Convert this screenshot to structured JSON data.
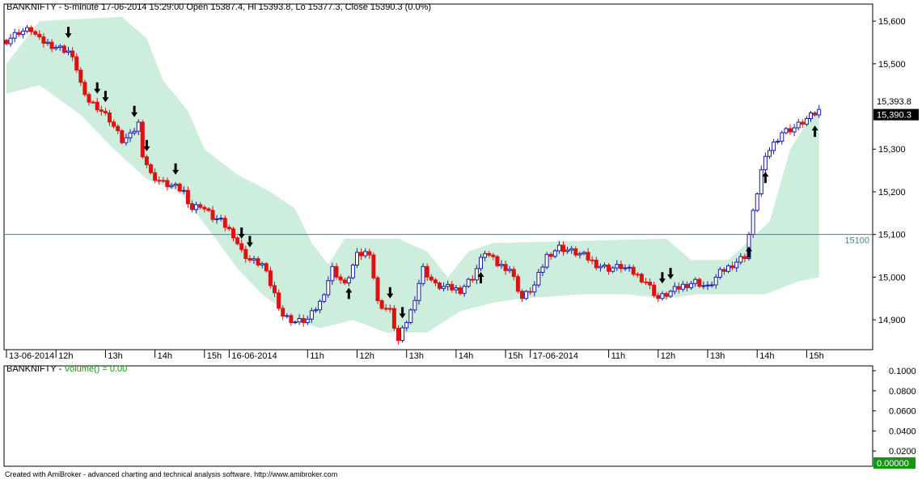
{
  "header": {
    "main_title": "BANKNIFTY - 5-minute 17-06-2014 15:29:00 Open 15387.4, Hi 15393.8, Lo 15377.3, Close 15390.3 (0.0%)",
    "volume_symbol": "BANKNIFTY - ",
    "volume_title": "Volume() = 0.00"
  },
  "footer": {
    "credit": "Created with AmiBroker - advanced charting and technical analysis software. http://www.amibroker.com"
  },
  "colors": {
    "up_candle": "#1a1aa8",
    "down_candle": "#e01010",
    "cloud": "#cdeedd",
    "hline": "#3a8a8a",
    "volume_title": "#1a9a1a"
  },
  "chart_data": {
    "type": "candlestick",
    "ylim": [
      14830,
      15640
    ],
    "price_ticks": [
      "15,600",
      "15,500",
      "15,300",
      "15,200",
      "15,100",
      "15,000",
      "14,900"
    ],
    "price_tick_values": [
      15600,
      15500,
      15300,
      15200,
      15100,
      15000,
      14900
    ],
    "hi_label": "15,393.8",
    "hi_value": 15393.8,
    "close_label": "15,390.3",
    "close_value": 15390.3,
    "horizontal_line": {
      "label": "15100",
      "value": 15100
    },
    "x_labels": [
      {
        "text": "13-06-2014",
        "bar": 0
      },
      {
        "text": "12h",
        "bar": 12
      },
      {
        "text": "13h",
        "bar": 24
      },
      {
        "text": "14h",
        "bar": 36
      },
      {
        "text": "15h",
        "bar": 48
      },
      {
        "text": "16-06-2014",
        "bar": 54
      },
      {
        "text": "11h",
        "bar": 73
      },
      {
        "text": "12h",
        "bar": 85
      },
      {
        "text": "13h",
        "bar": 97
      },
      {
        "text": "14h",
        "bar": 109
      },
      {
        "text": "15h",
        "bar": 121
      },
      {
        "text": "17-06-2014",
        "bar": 127
      },
      {
        "text": "11h",
        "bar": 146
      },
      {
        "text": "12h",
        "bar": 158
      },
      {
        "text": "13h",
        "bar": 170
      },
      {
        "text": "14h",
        "bar": 182
      },
      {
        "text": "15h",
        "bar": 194
      }
    ],
    "close_path": [
      [
        0,
        15555
      ],
      [
        3,
        15575
      ],
      [
        6,
        15580
      ],
      [
        8,
        15555
      ],
      [
        12,
        15540
      ],
      [
        15,
        15530
      ],
      [
        17,
        15490
      ],
      [
        19,
        15420
      ],
      [
        22,
        15400
      ],
      [
        25,
        15370
      ],
      [
        28,
        15320
      ],
      [
        30,
        15330
      ],
      [
        32,
        15360
      ],
      [
        33,
        15290
      ],
      [
        35,
        15240
      ],
      [
        38,
        15220
      ],
      [
        41,
        15210
      ],
      [
        43,
        15200
      ],
      [
        45,
        15160
      ],
      [
        47,
        15170
      ],
      [
        50,
        15140
      ],
      [
        52,
        15130
      ],
      [
        55,
        15100
      ],
      [
        57,
        15060
      ],
      [
        59,
        15040
      ],
      [
        62,
        15030
      ],
      [
        65,
        14960
      ],
      [
        67,
        14910
      ],
      [
        70,
        14895
      ],
      [
        73,
        14900
      ],
      [
        76,
        14940
      ],
      [
        79,
        15020
      ],
      [
        82,
        14980
      ],
      [
        85,
        15050
      ],
      [
        88,
        15060
      ],
      [
        90,
        14940
      ],
      [
        93,
        14920
      ],
      [
        95,
        14850
      ],
      [
        98,
        14920
      ],
      [
        101,
        15020
      ],
      [
        104,
        14980
      ],
      [
        107,
        14975
      ],
      [
        110,
        14970
      ],
      [
        113,
        15000
      ],
      [
        116,
        15060
      ],
      [
        119,
        15030
      ],
      [
        122,
        15020
      ],
      [
        125,
        14950
      ],
      [
        128,
        14980
      ],
      [
        131,
        15050
      ],
      [
        134,
        15070
      ],
      [
        137,
        15060
      ],
      [
        140,
        15050
      ],
      [
        143,
        15030
      ],
      [
        146,
        15020
      ],
      [
        149,
        15025
      ],
      [
        152,
        15010
      ],
      [
        155,
        14990
      ],
      [
        158,
        14950
      ],
      [
        161,
        14965
      ],
      [
        164,
        14980
      ],
      [
        167,
        14990
      ],
      [
        170,
        14975
      ],
      [
        173,
        15010
      ],
      [
        176,
        15030
      ],
      [
        179,
        15050
      ],
      [
        181,
        15150
      ],
      [
        183,
        15250
      ],
      [
        185,
        15300
      ],
      [
        188,
        15340
      ],
      [
        191,
        15350
      ],
      [
        194,
        15370
      ],
      [
        197,
        15390
      ]
    ],
    "cloud_upper": [
      [
        0,
        15500
      ],
      [
        8,
        15600
      ],
      [
        28,
        15610
      ],
      [
        34,
        15560
      ],
      [
        38,
        15460
      ],
      [
        44,
        15390
      ],
      [
        48,
        15300
      ],
      [
        56,
        15240
      ],
      [
        64,
        15200
      ],
      [
        70,
        15160
      ],
      [
        74,
        15080
      ],
      [
        78,
        15030
      ],
      [
        82,
        15090
      ],
      [
        95,
        15090
      ],
      [
        102,
        15060
      ],
      [
        107,
        15000
      ],
      [
        112,
        15060
      ],
      [
        118,
        15080
      ],
      [
        160,
        15090
      ],
      [
        166,
        15040
      ],
      [
        175,
        15040
      ],
      [
        185,
        15130
      ],
      [
        190,
        15300
      ],
      [
        196,
        15390
      ],
      [
        197,
        15390
      ]
    ],
    "cloud_lower": [
      [
        0,
        15430
      ],
      [
        8,
        15450
      ],
      [
        18,
        15380
      ],
      [
        26,
        15300
      ],
      [
        34,
        15230
      ],
      [
        42,
        15200
      ],
      [
        50,
        15100
      ],
      [
        56,
        15020
      ],
      [
        62,
        14960
      ],
      [
        70,
        14900
      ],
      [
        76,
        14880
      ],
      [
        84,
        14900
      ],
      [
        92,
        14870
      ],
      [
        102,
        14870
      ],
      [
        110,
        14920
      ],
      [
        118,
        14940
      ],
      [
        125,
        14950
      ],
      [
        140,
        14960
      ],
      [
        150,
        14960
      ],
      [
        160,
        14950
      ],
      [
        168,
        14960
      ],
      [
        176,
        14960
      ],
      [
        184,
        14960
      ],
      [
        192,
        14990
      ],
      [
        197,
        15000
      ]
    ],
    "down_arrows": [
      15,
      22,
      24,
      31,
      34,
      41,
      57,
      59,
      93,
      96,
      159,
      161
    ],
    "up_arrows": [
      83,
      115,
      180,
      184,
      196
    ],
    "volume_ticks": [
      "0.1000",
      "0.0800",
      "0.0600",
      "0.0400",
      "0.0200"
    ],
    "volume_tick_values": [
      0.1,
      0.08,
      0.06,
      0.04,
      0.02
    ],
    "volume_current": "0.00000",
    "volume_ylim": [
      0,
      0.1
    ]
  }
}
